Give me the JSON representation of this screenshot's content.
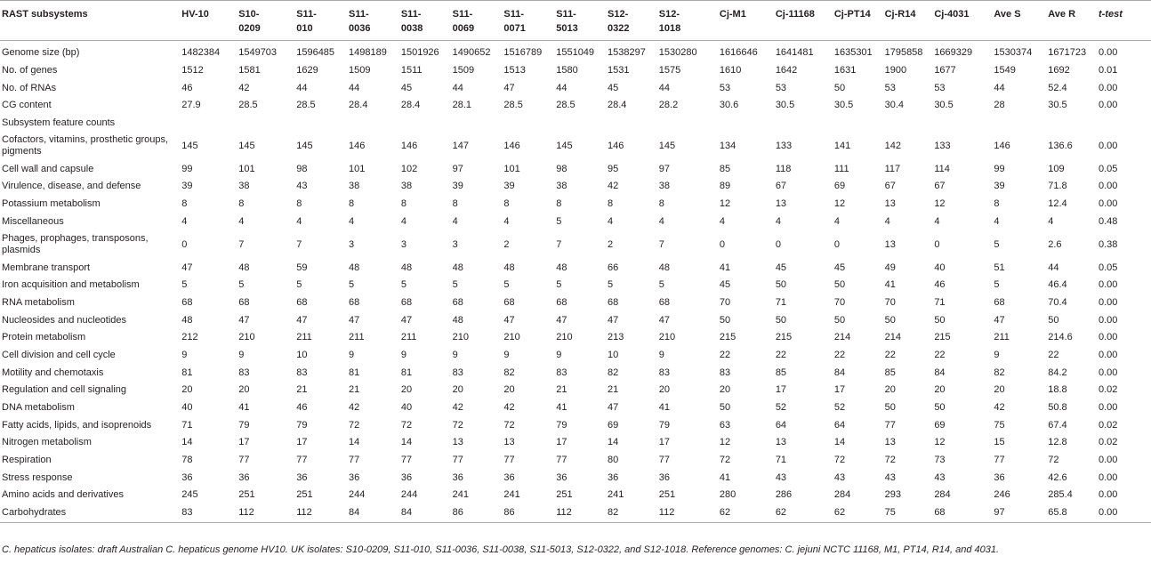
{
  "columns": [
    "RAST subsystems",
    "HV-10",
    "S10-0209",
    "S11-010",
    "S11-0036",
    "S11-0038",
    "S11-0069",
    "S11-0071",
    "S11-5013",
    "S12-0322",
    "S12-1018",
    "Cj-M1",
    "Cj-11168",
    "Cj-PT14",
    "Cj-R14",
    "Cj-4031",
    "Ave S",
    "Ave R",
    "t-test"
  ],
  "rows": [
    {
      "label": "Genome size (bp)",
      "values": [
        "1482384",
        "1549703",
        "1596485",
        "1498189",
        "1501926",
        "1490652",
        "1516789",
        "1551049",
        "1538297",
        "1530280",
        "1616646",
        "1641481",
        "1635301",
        "1795858",
        "1669329",
        "1530374",
        "1671723",
        "0.00"
      ]
    },
    {
      "label": "No. of genes",
      "values": [
        "1512",
        "1581",
        "1629",
        "1509",
        "1511",
        "1509",
        "1513",
        "1580",
        "1531",
        "1575",
        "1610",
        "1642",
        "1631",
        "1900",
        "1677",
        "1549",
        "1692",
        "0.01"
      ]
    },
    {
      "label": "No. of RNAs",
      "values": [
        "46",
        "42",
        "44",
        "44",
        "45",
        "44",
        "47",
        "44",
        "45",
        "44",
        "53",
        "53",
        "50",
        "53",
        "53",
        "44",
        "52.4",
        "0.00"
      ]
    },
    {
      "label": "CG content",
      "values": [
        "27.9",
        "28.5",
        "28.5",
        "28.4",
        "28.4",
        "28.1",
        "28.5",
        "28.5",
        "28.4",
        "28.2",
        "30.6",
        "30.5",
        "30.5",
        "30.4",
        "30.5",
        "28",
        "30.5",
        "0.00"
      ]
    },
    {
      "label": "Subsystem feature counts",
      "values": [
        "",
        "",
        "",
        "",
        "",
        "",
        "",
        "",
        "",
        "",
        "",
        "",
        "",
        "",
        "",
        "",
        "",
        ""
      ]
    },
    {
      "label": "Cofactors, vitamins, prosthetic groups, pigments",
      "values": [
        "145",
        "145",
        "145",
        "146",
        "146",
        "147",
        "146",
        "145",
        "146",
        "145",
        "134",
        "133",
        "141",
        "142",
        "133",
        "146",
        "136.6",
        "0.00"
      ]
    },
    {
      "label": "Cell wall and capsule",
      "values": [
        "99",
        "101",
        "98",
        "101",
        "102",
        "97",
        "101",
        "98",
        "95",
        "97",
        "85",
        "118",
        "111",
        "117",
        "114",
        "99",
        "109",
        "0.05"
      ]
    },
    {
      "label": "Virulence, disease, and defense",
      "values": [
        "39",
        "38",
        "43",
        "38",
        "38",
        "39",
        "39",
        "38",
        "42",
        "38",
        "89",
        "67",
        "69",
        "67",
        "67",
        "39",
        "71.8",
        "0.00"
      ]
    },
    {
      "label": "Potassium metabolism",
      "values": [
        "8",
        "8",
        "8",
        "8",
        "8",
        "8",
        "8",
        "8",
        "8",
        "8",
        "12",
        "13",
        "12",
        "13",
        "12",
        "8",
        "12.4",
        "0.00"
      ]
    },
    {
      "label": "Miscellaneous",
      "values": [
        "4",
        "4",
        "4",
        "4",
        "4",
        "4",
        "4",
        "5",
        "4",
        "4",
        "4",
        "4",
        "4",
        "4",
        "4",
        "4",
        "4",
        "0.48"
      ]
    },
    {
      "label": "Phages, prophages, transposons, plasmids",
      "values": [
        "0",
        "7",
        "7",
        "3",
        "3",
        "3",
        "2",
        "7",
        "2",
        "7",
        "0",
        "0",
        "0",
        "13",
        "0",
        "5",
        "2.6",
        "0.38"
      ]
    },
    {
      "label": "Membrane transport",
      "values": [
        "47",
        "48",
        "59",
        "48",
        "48",
        "48",
        "48",
        "48",
        "66",
        "48",
        "41",
        "45",
        "45",
        "49",
        "40",
        "51",
        "44",
        "0.05"
      ]
    },
    {
      "label": "Iron acquisition and metabolism",
      "values": [
        "5",
        "5",
        "5",
        "5",
        "5",
        "5",
        "5",
        "5",
        "5",
        "5",
        "45",
        "50",
        "50",
        "41",
        "46",
        "5",
        "46.4",
        "0.00"
      ]
    },
    {
      "label": "RNA metabolism",
      "values": [
        "68",
        "68",
        "68",
        "68",
        "68",
        "68",
        "68",
        "68",
        "68",
        "68",
        "70",
        "71",
        "70",
        "70",
        "71",
        "68",
        "70.4",
        "0.00"
      ]
    },
    {
      "label": "Nucleosides and nucleotides",
      "values": [
        "48",
        "47",
        "47",
        "47",
        "47",
        "48",
        "47",
        "47",
        "47",
        "47",
        "50",
        "50",
        "50",
        "50",
        "50",
        "47",
        "50",
        "0.00"
      ]
    },
    {
      "label": "Protein metabolism",
      "values": [
        "212",
        "210",
        "211",
        "211",
        "211",
        "210",
        "210",
        "210",
        "213",
        "210",
        "215",
        "215",
        "214",
        "214",
        "215",
        "211",
        "214.6",
        "0.00"
      ]
    },
    {
      "label": "Cell division and cell cycle",
      "values": [
        "9",
        "9",
        "10",
        "9",
        "9",
        "9",
        "9",
        "9",
        "10",
        "9",
        "22",
        "22",
        "22",
        "22",
        "22",
        "9",
        "22",
        "0.00"
      ]
    },
    {
      "label": "Motility and chemotaxis",
      "values": [
        "81",
        "83",
        "83",
        "81",
        "81",
        "83",
        "82",
        "83",
        "82",
        "83",
        "83",
        "85",
        "84",
        "85",
        "84",
        "82",
        "84.2",
        "0.00"
      ]
    },
    {
      "label": "Regulation and cell signaling",
      "values": [
        "20",
        "20",
        "21",
        "21",
        "20",
        "20",
        "20",
        "21",
        "21",
        "20",
        "20",
        "17",
        "17",
        "20",
        "20",
        "20",
        "18.8",
        "0.02"
      ]
    },
    {
      "label": "DNA metabolism",
      "values": [
        "40",
        "41",
        "46",
        "42",
        "40",
        "42",
        "42",
        "41",
        "47",
        "41",
        "50",
        "52",
        "52",
        "50",
        "50",
        "42",
        "50.8",
        "0.00"
      ]
    },
    {
      "label": "Fatty acids, lipids, and isoprenoids",
      "values": [
        "71",
        "79",
        "79",
        "72",
        "72",
        "72",
        "72",
        "79",
        "69",
        "79",
        "63",
        "64",
        "64",
        "77",
        "69",
        "75",
        "67.4",
        "0.02"
      ]
    },
    {
      "label": "Nitrogen metabolism",
      "values": [
        "14",
        "17",
        "17",
        "14",
        "14",
        "13",
        "13",
        "17",
        "14",
        "17",
        "12",
        "13",
        "14",
        "13",
        "12",
        "15",
        "12.8",
        "0.02"
      ]
    },
    {
      "label": "Respiration",
      "values": [
        "78",
        "77",
        "77",
        "77",
        "77",
        "77",
        "77",
        "77",
        "80",
        "77",
        "72",
        "71",
        "72",
        "72",
        "73",
        "77",
        "72",
        "0.00"
      ]
    },
    {
      "label": "Stress response",
      "values": [
        "36",
        "36",
        "36",
        "36",
        "36",
        "36",
        "36",
        "36",
        "36",
        "36",
        "41",
        "43",
        "43",
        "43",
        "43",
        "36",
        "42.6",
        "0.00"
      ]
    },
    {
      "label": "Amino acids and derivatives",
      "values": [
        "245",
        "251",
        "251",
        "244",
        "244",
        "241",
        "241",
        "251",
        "241",
        "251",
        "280",
        "286",
        "284",
        "293",
        "284",
        "246",
        "285.4",
        "0.00"
      ]
    },
    {
      "label": "Carbohydrates",
      "values": [
        "83",
        "112",
        "112",
        "84",
        "84",
        "86",
        "86",
        "112",
        "82",
        "112",
        "62",
        "62",
        "62",
        "75",
        "68",
        "97",
        "65.8",
        "0.00"
      ]
    }
  ],
  "footnote": "C. hepaticus isolates: draft Australian C. hepaticus genome HV10. UK isolates: S10-0209, S11-010, S11-0036, S11-0038, S11-5013, S12-0322, and S12-1018. Reference genomes: C. jejuni NCTC 11168, M1, PT14, R14, and 4031."
}
